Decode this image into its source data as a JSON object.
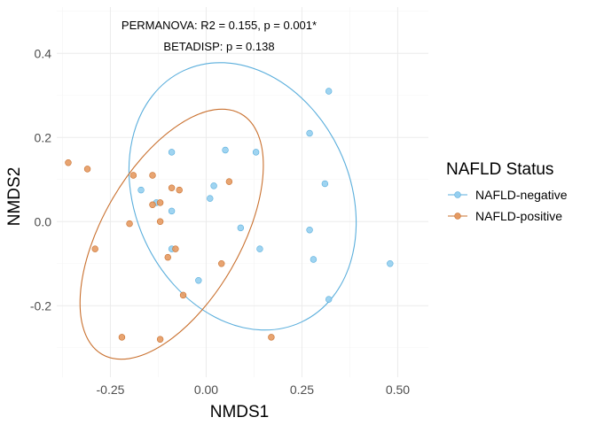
{
  "chart_data": {
    "type": "scatter",
    "xlabel": "NMDS1",
    "ylabel": "NMDS2",
    "xlim": [
      -0.39,
      0.58
    ],
    "ylim": [
      -0.37,
      0.51
    ],
    "x_ticks": [
      -0.25,
      0,
      0.25,
      0.5
    ],
    "x_tick_labels": [
      "-0.25",
      "0.00",
      "0.25",
      "0.50"
    ],
    "y_ticks": [
      -0.2,
      0,
      0.2,
      0.4
    ],
    "y_tick_labels": [
      "-0.2",
      "0.0",
      "0.2",
      "0.4"
    ],
    "grid": true,
    "annotations": [
      "PERMANOVA: R2 = 0.155, p = 0.001*",
      "BETADISP: p = 0.138"
    ],
    "legend": {
      "title": "NAFLD Status",
      "position": "right"
    },
    "series": [
      {
        "name": "NAFLD-negative",
        "fill": "#95cff0",
        "stroke": "#5aaedc",
        "points": [
          [
            0.32,
            0.31
          ],
          [
            0.27,
            0.21
          ],
          [
            -0.09,
            0.165
          ],
          [
            0.05,
            0.17
          ],
          [
            0.13,
            0.165
          ],
          [
            0.31,
            0.09
          ],
          [
            0.02,
            0.085
          ],
          [
            -0.17,
            0.075
          ],
          [
            0.01,
            0.055
          ],
          [
            -0.13,
            0.045
          ],
          [
            -0.09,
            0.025
          ],
          [
            0.09,
            -0.015
          ],
          [
            0.27,
            -0.02
          ],
          [
            -0.09,
            -0.065
          ],
          [
            0.14,
            -0.065
          ],
          [
            0.28,
            -0.09
          ],
          [
            0.48,
            -0.1
          ],
          [
            -0.02,
            -0.14
          ],
          [
            0.32,
            -0.185
          ]
        ],
        "ellipse": {
          "center": [
            0.095,
            0.06
          ],
          "rx": 0.28,
          "ry": 0.33,
          "angle_deg": -25
        }
      },
      {
        "name": "NAFLD-positive",
        "fill": "#e59a62",
        "stroke": "#c9702e",
        "points": [
          [
            -0.36,
            0.14
          ],
          [
            -0.31,
            0.125
          ],
          [
            -0.19,
            0.11
          ],
          [
            -0.14,
            0.11
          ],
          [
            -0.09,
            0.08
          ],
          [
            -0.07,
            0.075
          ],
          [
            0.06,
            0.095
          ],
          [
            -0.14,
            0.04
          ],
          [
            -0.12,
            0.045
          ],
          [
            -0.2,
            -0.005
          ],
          [
            -0.12,
            0.0
          ],
          [
            -0.29,
            -0.065
          ],
          [
            -0.08,
            -0.065
          ],
          [
            -0.1,
            -0.085
          ],
          [
            0.04,
            -0.1
          ],
          [
            -0.06,
            -0.175
          ],
          [
            -0.22,
            -0.275
          ],
          [
            -0.12,
            -0.28
          ],
          [
            0.17,
            -0.275
          ]
        ],
        "ellipse": {
          "center": [
            -0.09,
            -0.03
          ],
          "rx": 0.18,
          "ry": 0.33,
          "angle_deg": 30
        }
      }
    ]
  }
}
